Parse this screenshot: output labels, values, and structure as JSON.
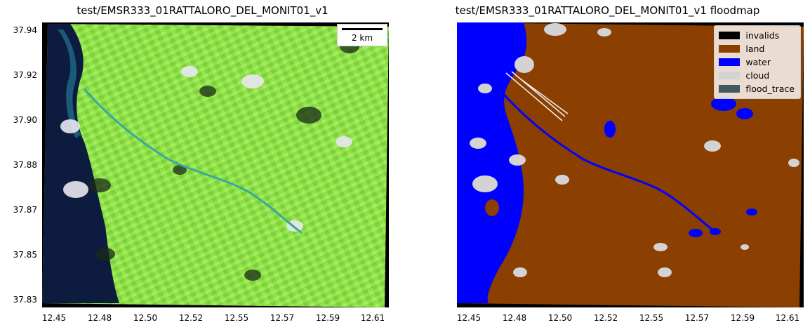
{
  "left_panel": {
    "title": "test/EMSR333_01RATTALORO_DEL_MONIT01_v1",
    "scalebar_label": "2 km"
  },
  "right_panel": {
    "title": "test/EMSR333_01RATTALORO_DEL_MONIT01_v1 floodmap",
    "legend": [
      {
        "label": "invalids",
        "color": "#000000"
      },
      {
        "label": "land",
        "color": "#8b3f00"
      },
      {
        "label": "water",
        "color": "#0000ff"
      },
      {
        "label": "cloud",
        "color": "#d3d3d3"
      },
      {
        "label": "flood_trace",
        "color": "#3e5a5e"
      }
    ]
  },
  "axes": {
    "y_ticks": [
      "37.94",
      "37.92",
      "37.90",
      "37.88",
      "37.87",
      "37.85",
      "37.83"
    ],
    "x_ticks": [
      "12.45",
      "12.48",
      "12.50",
      "12.52",
      "12.55",
      "12.57",
      "12.59",
      "12.61"
    ]
  },
  "colors": {
    "sea_dark": "#0d1b3e",
    "vegetation": "#8fe34a",
    "river": "#3aa8a0"
  }
}
